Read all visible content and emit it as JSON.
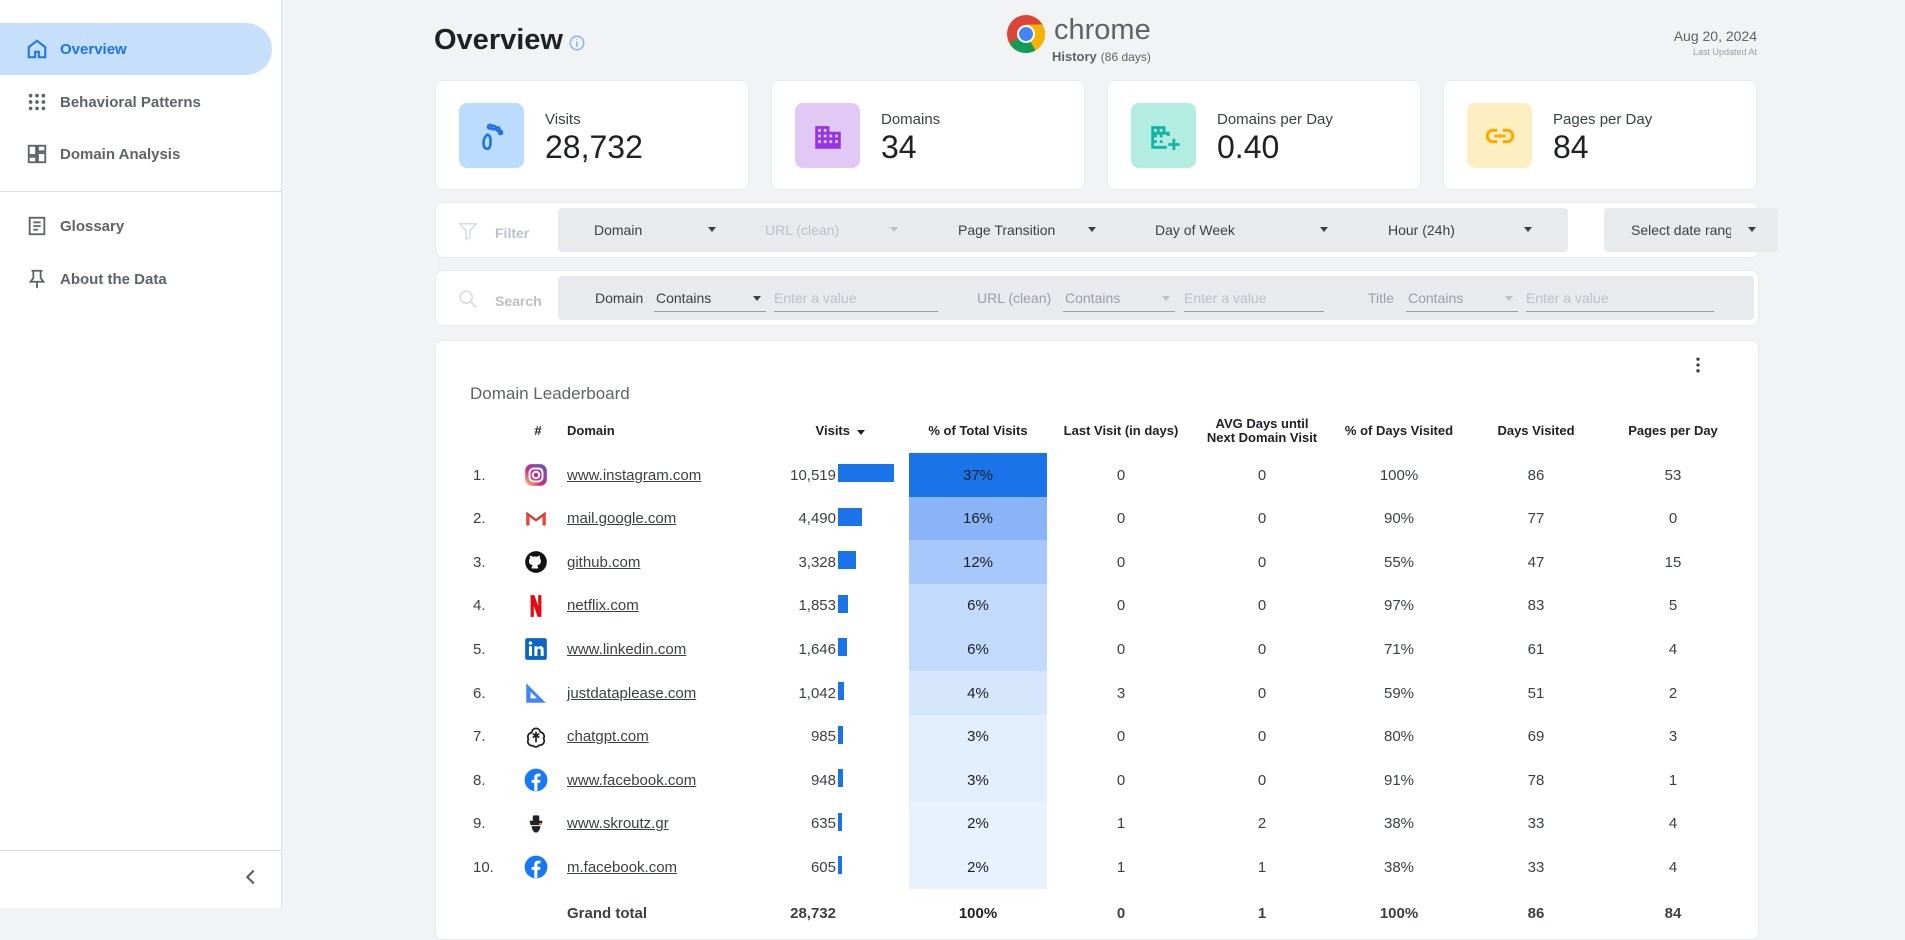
{
  "sidebar": {
    "items": [
      {
        "label": "Overview",
        "icon": "home-icon"
      },
      {
        "label": "Behavioral Patterns",
        "icon": "grid-dots-icon"
      },
      {
        "label": "Domain Analysis",
        "icon": "dashboard-icon"
      },
      {
        "label": "Glossary",
        "icon": "article-icon"
      },
      {
        "label": "About the Data",
        "icon": "pin-icon"
      }
    ],
    "active": "Overview"
  },
  "header": {
    "title": "Overview",
    "logo_text": "chrome",
    "logo_sub": "History",
    "logo_days": "(86 days)",
    "date": "Aug 20, 2024",
    "date_sub": "Last Updated At"
  },
  "kpis": [
    {
      "label": "Visits",
      "value": "28,732",
      "color": "#bcdcff",
      "icon_color": "#1a73e8",
      "icon": "footprints-icon"
    },
    {
      "label": "Domains",
      "value": "34",
      "color": "#e1c8f5",
      "icon_color": "#9334e6",
      "icon": "building-icon"
    },
    {
      "label": "Domains per Day",
      "value": "0.40",
      "color": "#b3ece0",
      "icon_color": "#12b5a5",
      "icon": "building-add-icon"
    },
    {
      "label": "Pages per Day",
      "value": "84",
      "color": "#feefc3",
      "icon_color": "#f9ab00",
      "icon": "link-icon"
    }
  ],
  "filter": {
    "label": "Filter",
    "dropdowns": [
      "Domain",
      "URL (clean)",
      "Page Transition",
      "Day of Week",
      "Hour (24h)"
    ],
    "date_button": "Select date range"
  },
  "search": {
    "label": "Search",
    "fields": [
      {
        "label": "Domain",
        "op": "Contains",
        "placeholder": "Enter a value"
      },
      {
        "label": "URL (clean)",
        "op": "Contains",
        "placeholder": "Enter a value"
      },
      {
        "label": "Title",
        "op": "Contains",
        "placeholder": "Enter a value"
      }
    ]
  },
  "table": {
    "title": "Domain Leaderboard",
    "headers": [
      "#",
      "Domain",
      "Visits",
      "% of Total Visits",
      "Last Visit (in days)",
      "AVG Days until",
      "Next Domain Visit",
      "% of Days Visited",
      "Days Visited",
      "Pages per Day"
    ],
    "rows": [
      {
        "n": "1.",
        "domain": "www.instagram.com",
        "icon": "instagram-icon",
        "visits": "10,519",
        "visits_num": 10519,
        "pct": "37%",
        "last": "0",
        "avg": "0",
        "pdays": "100%",
        "days": "86",
        "ppd": "53"
      },
      {
        "n": "2.",
        "domain": "mail.google.com",
        "icon": "gmail-icon",
        "visits": "4,490",
        "visits_num": 4490,
        "pct": "16%",
        "last": "0",
        "avg": "0",
        "pdays": "90%",
        "days": "77",
        "ppd": "0"
      },
      {
        "n": "3.",
        "domain": "github.com",
        "icon": "github-icon",
        "visits": "3,328",
        "visits_num": 3328,
        "pct": "12%",
        "last": "0",
        "avg": "0",
        "pdays": "55%",
        "days": "47",
        "ppd": "15"
      },
      {
        "n": "4.",
        "domain": "netflix.com",
        "icon": "netflix-icon",
        "visits": "1,853",
        "visits_num": 1853,
        "pct": "6%",
        "last": "0",
        "avg": "0",
        "pdays": "97%",
        "days": "83",
        "ppd": "5"
      },
      {
        "n": "5.",
        "domain": "www.linkedin.com",
        "icon": "linkedin-icon",
        "visits": "1,646",
        "visits_num": 1646,
        "pct": "6%",
        "last": "0",
        "avg": "0",
        "pdays": "71%",
        "days": "61",
        "ppd": "4"
      },
      {
        "n": "6.",
        "domain": "justdataplease.com",
        "icon": "set-square-icon",
        "visits": "1,042",
        "visits_num": 1042,
        "pct": "4%",
        "last": "3",
        "avg": "0",
        "pdays": "59%",
        "days": "51",
        "ppd": "2"
      },
      {
        "n": "7.",
        "domain": "chatgpt.com",
        "icon": "chatgpt-icon",
        "visits": "985",
        "visits_num": 985,
        "pct": "3%",
        "last": "0",
        "avg": "0",
        "pdays": "80%",
        "days": "69",
        "ppd": "3"
      },
      {
        "n": "8.",
        "domain": "www.facebook.com",
        "icon": "facebook-icon",
        "visits": "948",
        "visits_num": 948,
        "pct": "3%",
        "last": "0",
        "avg": "0",
        "pdays": "91%",
        "days": "78",
        "ppd": "1"
      },
      {
        "n": "9.",
        "domain": "www.skroutz.gr",
        "icon": "skroutz-icon",
        "visits": "635",
        "visits_num": 635,
        "pct": "2%",
        "last": "1",
        "avg": "2",
        "pdays": "38%",
        "days": "33",
        "ppd": "4"
      },
      {
        "n": "10.",
        "domain": "m.facebook.com",
        "icon": "facebook-icon",
        "visits": "605",
        "visits_num": 605,
        "pct": "2%",
        "last": "1",
        "avg": "1",
        "pdays": "38%",
        "days": "33",
        "ppd": "4"
      }
    ],
    "total": {
      "label": "Grand total",
      "visits": "28,732",
      "pct": "100%",
      "last": "0",
      "avg": "1",
      "pdays": "100%",
      "days": "86",
      "ppd": "84"
    }
  }
}
